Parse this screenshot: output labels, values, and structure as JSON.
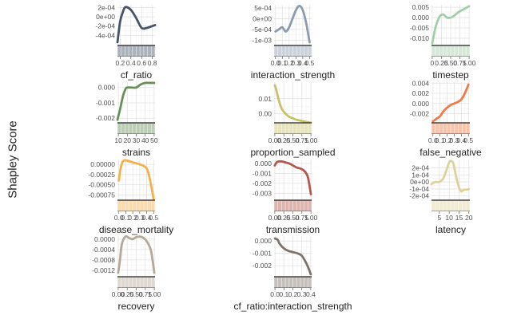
{
  "y_axis_title": "Shapley Score",
  "chart_data": [
    {
      "type": "line",
      "xlabel": "cf_ratio",
      "color": "#44546a",
      "xlim": [
        0.15,
        0.85
      ],
      "ylim": [
        -0.00062,
        0.00026
      ],
      "xticks": [
        0.2,
        0.4,
        0.6,
        0.8
      ],
      "xtick_labels": [
        "0.2",
        "0.4",
        "0.6",
        "0.8"
      ],
      "yticks": [
        0.0002,
        0,
        -0.0002,
        -0.0004
      ],
      "ytick_labels": [
        "2e-04",
        "0e+00",
        "-2e-04",
        "-4e-04"
      ],
      "x": [
        0.15,
        0.2,
        0.25,
        0.3,
        0.4,
        0.5,
        0.6,
        0.7,
        0.8,
        0.85
      ],
      "y": [
        -0.00055,
        -0.0001,
        0.0001,
        0.00021,
        0.00015,
        -3e-05,
        -0.00024,
        -0.00024,
        -0.0002,
        -0.00018
      ]
    },
    {
      "type": "line",
      "xlabel": "interaction_strength",
      "color": "#8b9caf",
      "xlim": [
        -0.02,
        0.53
      ],
      "ylim": [
        -0.00125,
        0.00065
      ],
      "xticks": [
        0.0,
        0.1,
        0.2,
        0.3,
        0.4,
        0.5
      ],
      "xtick_labels": [
        "0.0",
        "0.1",
        "0.2",
        "0.3",
        "0.4",
        "0.5"
      ],
      "yticks": [
        0.0005,
        0,
        -0.0005,
        -0.001
      ],
      "ytick_labels": [
        "5e-04",
        "0e+00",
        "-5e-04",
        "-1e-03"
      ],
      "x": [
        0.0,
        0.05,
        0.1,
        0.15,
        0.2,
        0.25,
        0.3,
        0.35,
        0.4,
        0.45,
        0.5
      ],
      "y": [
        -0.0006,
        -0.0005,
        -0.0004,
        -0.0006,
        -0.0004,
        0.0,
        0.0004,
        0.0006,
        0.0004,
        -0.0002,
        -0.0011
      ]
    },
    {
      "type": "line",
      "xlabel": "timestep",
      "color": "#a3cfa8",
      "xlim": [
        -0.02,
        1.02
      ],
      "ylim": [
        -0.0135,
        0.0062
      ],
      "xticks": [
        0.0,
        0.25,
        0.5,
        0.75,
        1.0
      ],
      "xtick_labels": [
        "0",
        "0.25",
        "0.50",
        "0.75",
        "1.00"
      ],
      "yticks": [
        0.005,
        0,
        -0.005,
        -0.01
      ],
      "ytick_labels": [
        "0.005",
        "0.000",
        "-0.005",
        "-0.010"
      ],
      "x": [
        0.0,
        0.05,
        0.1,
        0.2,
        0.3,
        0.4,
        0.5,
        0.6,
        0.7,
        0.8,
        0.9,
        1.0
      ],
      "y": [
        -0.0125,
        -0.008,
        -0.004,
        0.0005,
        0.0015,
        0.0,
        0.0,
        0.001,
        0.0025,
        0.0035,
        0.0045,
        0.0055
      ]
    },
    {
      "type": "line",
      "xlabel": "strains",
      "color": "#6a8f5a",
      "xlim": [
        9,
        51
      ],
      "ylim": [
        -0.0023,
        0.00035
      ],
      "xticks": [
        10,
        20,
        30,
        40,
        50
      ],
      "xtick_labels": [
        "10",
        "20",
        "30",
        "40",
        "50"
      ],
      "yticks": [
        0,
        -0.001,
        -0.002
      ],
      "ytick_labels": [
        "0.000",
        "-0.001",
        "-0.002"
      ],
      "x": [
        9,
        12,
        15,
        18,
        20,
        25,
        30,
        35,
        40,
        45,
        50
      ],
      "y": [
        -0.0021,
        -0.0014,
        -0.0006,
        -0.0001,
        0.0,
        0.0,
        0.0,
        0.0002,
        0.0003,
        0.0003,
        0.0003
      ]
    },
    {
      "type": "line",
      "xlabel": "proportion_sampled",
      "color": "#c9c06a",
      "xlim": [
        -0.02,
        1.02
      ],
      "ylim": [
        -0.006,
        0.021
      ],
      "xticks": [
        0.0,
        0.25,
        0.5,
        0.75,
        1.0
      ],
      "xtick_labels": [
        "0.00",
        "0.25",
        "0.50",
        "0.75",
        "1.00"
      ],
      "yticks": [
        0.01,
        0
      ],
      "ytick_labels": [
        "0.01",
        "0.00"
      ],
      "x": [
        0.0,
        0.05,
        0.1,
        0.15,
        0.2,
        0.3,
        0.4,
        0.5,
        0.6,
        0.7,
        0.8,
        0.9,
        1.0
      ],
      "y": [
        0.019,
        0.015,
        0.01,
        0.006,
        0.003,
        0.0,
        -0.002,
        -0.003,
        -0.004,
        -0.0045,
        -0.005,
        -0.0055,
        -0.006
      ]
    },
    {
      "type": "line",
      "xlabel": "false_negative",
      "color": "#f07a45",
      "xlim": [
        -0.02,
        0.52
      ],
      "ylim": [
        -0.0038,
        0.0042
      ],
      "xticks": [
        0.0,
        0.1,
        0.2,
        0.3,
        0.4,
        0.5
      ],
      "xtick_labels": [
        "0.0",
        "0.1",
        "0.2",
        "0.3",
        "0.4",
        "0.5"
      ],
      "yticks": [
        0.004,
        0.002,
        0,
        -0.002
      ],
      "ytick_labels": [
        "0.004",
        "0.002",
        "0.000",
        "-0.002"
      ],
      "x": [
        0.0,
        0.05,
        0.1,
        0.15,
        0.2,
        0.25,
        0.3,
        0.35,
        0.4,
        0.45,
        0.5
      ],
      "y": [
        -0.0035,
        -0.003,
        -0.0025,
        -0.0015,
        -0.0008,
        -0.0003,
        0.0,
        0.0003,
        0.0008,
        0.002,
        0.0037
      ]
    },
    {
      "type": "line",
      "xlabel": "disease_mortality",
      "color": "#f5b04c",
      "xlim": [
        -0.02,
        0.52
      ],
      "ylim": [
        -0.00088,
        0.00012
      ],
      "xticks": [
        0.0,
        0.1,
        0.2,
        0.3,
        0.4,
        0.5
      ],
      "xtick_labels": [
        "0.0",
        "0.1",
        "0.2",
        "0.3",
        "0.4",
        "0.5"
      ],
      "yticks": [
        0,
        -0.00025,
        -0.0005,
        -0.00075
      ],
      "ytick_labels": [
        "0.00000",
        "-0.00025",
        "-0.00050",
        "-0.00075"
      ],
      "x": [
        0.0,
        0.02,
        0.05,
        0.08,
        0.1,
        0.2,
        0.3,
        0.4,
        0.45,
        0.5
      ],
      "y": [
        -0.0004,
        -0.00015,
        5e-05,
        0.0001,
        0.0001,
        5e-05,
        0.0,
        -0.0001,
        -0.0004,
        -0.00085
      ]
    },
    {
      "type": "line",
      "xlabel": "transmission",
      "color": "#b5584c",
      "xlim": [
        -0.02,
        1.02
      ],
      "ylim": [
        -0.0037,
        0.0004
      ],
      "xticks": [
        0.0,
        0.25,
        0.5,
        0.75,
        1.0
      ],
      "xtick_labels": [
        "0.00",
        "0.25",
        "0.50",
        "0.75",
        "1.00"
      ],
      "yticks": [
        0,
        -0.001,
        -0.002,
        -0.003
      ],
      "ytick_labels": [
        "0.000",
        "-0.001",
        "-0.002",
        "-0.003"
      ],
      "x": [
        0.0,
        0.05,
        0.1,
        0.2,
        0.3,
        0.4,
        0.5,
        0.6,
        0.7,
        0.8,
        0.9,
        0.95,
        1.0
      ],
      "y": [
        -0.0002,
        0.0001,
        0.0002,
        0.0002,
        0.0001,
        0.0,
        -0.0002,
        -0.0004,
        -0.0005,
        -0.0007,
        -0.0012,
        -0.002,
        -0.0031
      ]
    },
    {
      "type": "line",
      "xlabel": "latency",
      "color": "#ddd39a",
      "xlim": [
        1,
        20.5
      ],
      "ylim": [
        -0.00026,
        0.00032
      ],
      "xticks": [
        5,
        10,
        15,
        20
      ],
      "xtick_labels": [
        "5",
        "10",
        "15",
        "20"
      ],
      "yticks": [
        0.0002,
        0.0001,
        0,
        -0.0001,
        -0.0002
      ],
      "ytick_labels": [
        "2e-04",
        "1e-04",
        "0e+00",
        "-1e-04",
        "-2e-04"
      ],
      "x": [
        1,
        3,
        5,
        7,
        9,
        10,
        11,
        12,
        13,
        14,
        15,
        16,
        17,
        18,
        19,
        20
      ],
      "y": [
        -3e-05,
        0.0,
        0.0,
        5e-05,
        0.0002,
        0.00028,
        0.0003,
        0.00027,
        0.00015,
        2e-05,
        -8e-05,
        -0.00013,
        -0.00012,
        -0.00011,
        -0.00011,
        -0.0001
      ]
    },
    {
      "type": "line",
      "xlabel": "recovery",
      "color": "#b5a898",
      "xlim": [
        -0.02,
        1.02
      ],
      "ylim": [
        -0.00145,
        0.00012
      ],
      "xticks": [
        0.0,
        0.25,
        0.5,
        0.75,
        1.0
      ],
      "xtick_labels": [
        "0.00",
        "0.25",
        "0.50",
        "0.75",
        "1.00"
      ],
      "yticks": [
        0,
        -0.0004,
        -0.0008,
        -0.0012
      ],
      "ytick_labels": [
        "0.0000",
        "-0.0004",
        "-0.0008",
        "-0.0012"
      ],
      "x": [
        0.0,
        0.05,
        0.1,
        0.2,
        0.3,
        0.4,
        0.5,
        0.6,
        0.7,
        0.8,
        0.9,
        0.95,
        1.0
      ],
      "y": [
        -0.0013,
        -0.0008,
        -0.0002,
        0.0001,
        5e-05,
        0.0,
        8e-05,
        0.0001,
        5e-05,
        -0.0001,
        -0.0004,
        -0.0008,
        -0.0013
      ]
    },
    {
      "type": "line",
      "xlabel": "cf_ratio:interaction_strength",
      "color": "#7d7368",
      "xlim": [
        -0.01,
        0.41
      ],
      "ylim": [
        -0.0029,
        0.0004
      ],
      "xticks": [
        0.0,
        0.1,
        0.2,
        0.3,
        0.4
      ],
      "xtick_labels": [
        "0.0",
        "0.1",
        "0.2",
        "0.3",
        "0.4"
      ],
      "yticks": [
        0,
        -0.001,
        -0.002
      ],
      "ytick_labels": [
        "0.000",
        "-0.001",
        "-0.002"
      ],
      "x": [
        0.0,
        0.03,
        0.05,
        0.1,
        0.15,
        0.2,
        0.25,
        0.3,
        0.35,
        0.38,
        0.4
      ],
      "y": [
        0.0002,
        0.0001,
        -0.0002,
        -0.0006,
        -0.0008,
        -0.0009,
        -0.001,
        -0.0012,
        -0.0018,
        -0.0023,
        -0.0027
      ]
    }
  ]
}
